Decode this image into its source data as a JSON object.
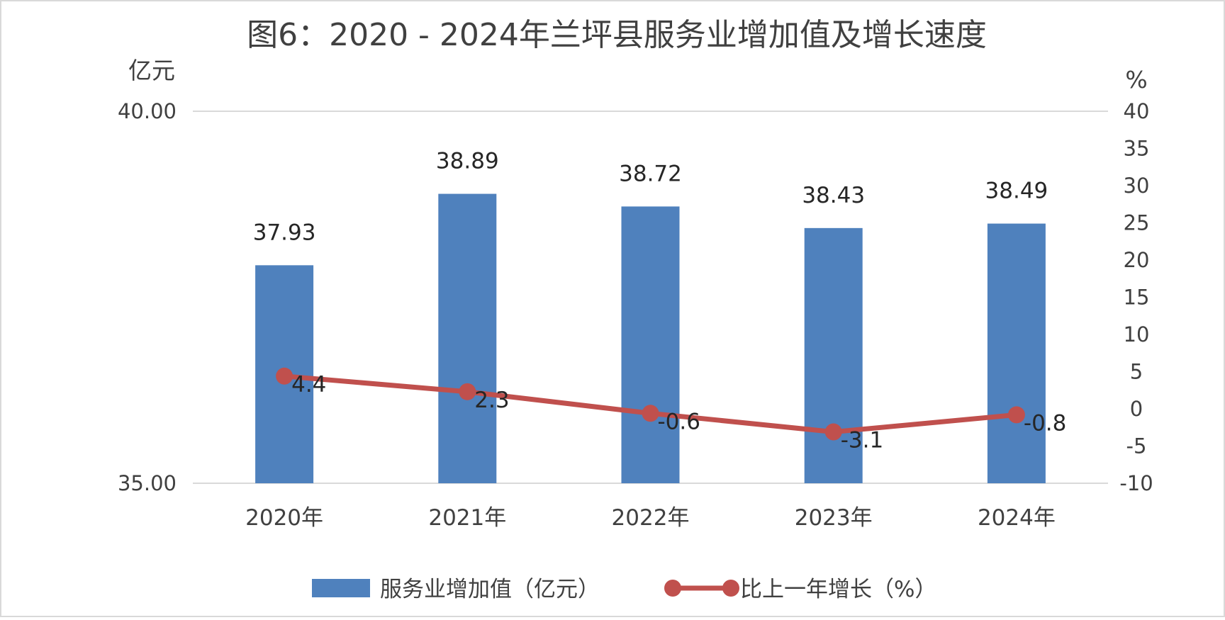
{
  "chart_data": {
    "type": "bar",
    "title": "图6：2020 - 2024年兰坪县服务业增加值及增长速度",
    "categories": [
      "2020年",
      "2021年",
      "2022年",
      "2023年",
      "2024年"
    ],
    "left_axis": {
      "unit_label": "亿元",
      "ylim": [
        35,
        40
      ],
      "ticks": [
        "35.00",
        "40.00"
      ]
    },
    "right_axis": {
      "unit_label": "%",
      "ylim": [
        -10,
        40
      ],
      "ticks": [
        "-10",
        "-5",
        "0",
        "5",
        "10",
        "15",
        "20",
        "25",
        "30",
        "35",
        "40"
      ]
    },
    "series": [
      {
        "name": "服务业增加值（亿元）",
        "type": "bar",
        "axis": "left",
        "values": [
          37.93,
          38.89,
          38.72,
          38.43,
          38.49
        ],
        "labels": [
          "37.93",
          "38.89",
          "38.72",
          "38.43",
          "38.49"
        ],
        "color": "#4F81BD"
      },
      {
        "name": "比上一年增长（%）",
        "type": "line",
        "axis": "right",
        "values": [
          4.4,
          2.3,
          -0.6,
          -3.1,
          -0.8
        ],
        "labels": [
          "4.4",
          "2.3",
          "-0.6",
          "-3.1",
          "-0.8"
        ],
        "color": "#C0504D"
      }
    ],
    "grid": false,
    "legend_position": "bottom"
  }
}
